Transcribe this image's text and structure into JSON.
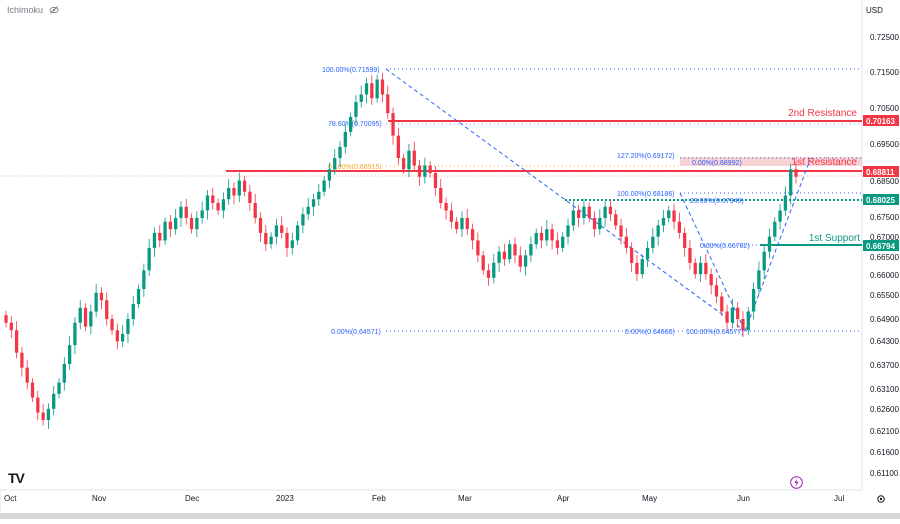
{
  "indicator": "Ichimoku",
  "currency": "USD",
  "logo": "TV",
  "chart_data": {
    "type": "candlestick",
    "y_ticks": [
      "0.72500",
      "0.71500",
      "0.70500",
      "0.69500",
      "0.68500",
      "0.67500",
      "0.67000",
      "0.66500",
      "0.66000",
      "0.65500",
      "0.64900",
      "0.64300",
      "0.63700",
      "0.63100",
      "0.62600",
      "0.62100",
      "0.61600",
      "0.61100"
    ],
    "x_ticks": [
      "Oct",
      "Nov",
      "Dec",
      "2023",
      "Feb",
      "Mar",
      "Apr",
      "May",
      "Jun",
      "Jul"
    ],
    "price_tags": [
      {
        "value": "0.70163",
        "color": "#f23645"
      },
      {
        "value": "0.68811",
        "color": "#f23645"
      },
      {
        "value": "0.68025",
        "color": "#089981"
      },
      {
        "value": "0.66794",
        "color": "#089981"
      }
    ],
    "levels": [
      {
        "label": "2nd Resistance",
        "color": "#f23645"
      },
      {
        "label": "1st Resistance",
        "color": "#f23645"
      },
      {
        "label": "1st Support",
        "color": "#089981"
      }
    ],
    "fib_labels": [
      "100.00%(0.71599)",
      "78.60%(0.70095)",
      "61.80%(0.68915)",
      "0.00%(0.64571)",
      "127.20%(0.69172)",
      "0.00%(0.68992)",
      "100.00%(0.68186)",
      "23.60%(0.67949)",
      "0.00%(0.66782)",
      "0.00%(0.64660)",
      "100.00%(0.64577)"
    ],
    "series_close": [
      0.648,
      0.646,
      0.64,
      0.636,
      0.632,
      0.628,
      0.624,
      0.622,
      0.625,
      0.629,
      0.632,
      0.637,
      0.642,
      0.648,
      0.652,
      0.647,
      0.651,
      0.656,
      0.654,
      0.649,
      0.646,
      0.643,
      0.645,
      0.649,
      0.653,
      0.657,
      0.662,
      0.668,
      0.672,
      0.67,
      0.675,
      0.673,
      0.676,
      0.679,
      0.676,
      0.673,
      0.676,
      0.678,
      0.682,
      0.68,
      0.678,
      0.681,
      0.684,
      0.682,
      0.686,
      0.683,
      0.68,
      0.676,
      0.672,
      0.669,
      0.671,
      0.674,
      0.672,
      0.668,
      0.67,
      0.674,
      0.677,
      0.679,
      0.681,
      0.683,
      0.686,
      0.689,
      0.692,
      0.695,
      0.699,
      0.703,
      0.707,
      0.709,
      0.712,
      0.708,
      0.713,
      0.709,
      0.704,
      0.698,
      0.692,
      0.689,
      0.694,
      0.69,
      0.687,
      0.69,
      0.688,
      0.684,
      0.68,
      0.678,
      0.675,
      0.673,
      0.676,
      0.673,
      0.67,
      0.666,
      0.662,
      0.66,
      0.664,
      0.667,
      0.665,
      0.669,
      0.666,
      0.663,
      0.666,
      0.669,
      0.672,
      0.67,
      0.673,
      0.67,
      0.668,
      0.671,
      0.674,
      0.678,
      0.676,
      0.679,
      0.676,
      0.673,
      0.676,
      0.679,
      0.677,
      0.674,
      0.671,
      0.668,
      0.664,
      0.661,
      0.665,
      0.668,
      0.671,
      0.674,
      0.676,
      0.678,
      0.675,
      0.672,
      0.668,
      0.664,
      0.661,
      0.664,
      0.661,
      0.658,
      0.655,
      0.651,
      0.648,
      0.652,
      0.649,
      0.646,
      0.651,
      0.657,
      0.662,
      0.667,
      0.671,
      0.675,
      0.678,
      0.682,
      0.689,
      0.687
    ]
  }
}
